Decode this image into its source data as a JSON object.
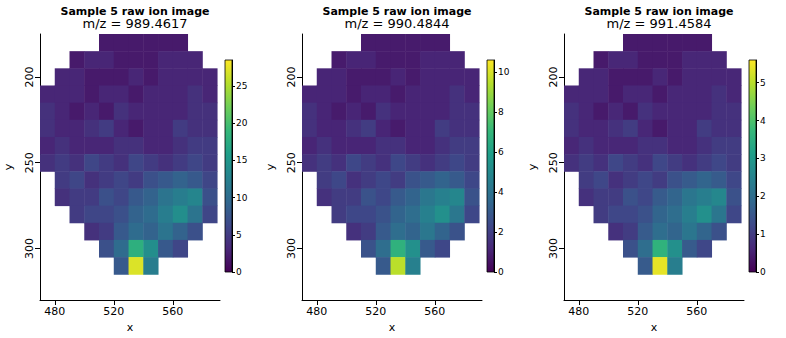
{
  "chart_data": [
    {
      "type": "heatmap",
      "title": "Sample 5 raw ion image",
      "subtitle": "m/z = 989.4617",
      "x_label": "x",
      "y_label": "y",
      "x": [
        475,
        485,
        495,
        505,
        515,
        525,
        535,
        545,
        555,
        565,
        575,
        585
      ],
      "y": [
        180,
        190,
        200,
        210,
        220,
        230,
        240,
        250,
        260,
        270,
        280,
        290,
        300,
        310
      ],
      "cells": [
        [
          null,
          null,
          null,
          null,
          2,
          2,
          2,
          2,
          2,
          2,
          null,
          null
        ],
        [
          null,
          null,
          2,
          3,
          3,
          2,
          2,
          2,
          3,
          3,
          3,
          null
        ],
        [
          null,
          3,
          3,
          2,
          2,
          2,
          3,
          2,
          3,
          3,
          3,
          3
        ],
        [
          3,
          3,
          3,
          2,
          3,
          3,
          2,
          3,
          3,
          3,
          4,
          3
        ],
        [
          4,
          3,
          2,
          3,
          2,
          4,
          3,
          3,
          3,
          3,
          4,
          4
        ],
        [
          4,
          3,
          3,
          4,
          5,
          3,
          2,
          3,
          3,
          5,
          4,
          4
        ],
        [
          3,
          4,
          3,
          3,
          3,
          4,
          4,
          3,
          3,
          4,
          5,
          5
        ],
        [
          4,
          5,
          4,
          6,
          5,
          4,
          6,
          5,
          4,
          5,
          6,
          5
        ],
        [
          null,
          5,
          6,
          4,
          5,
          6,
          5,
          7,
          8,
          9,
          8,
          6
        ],
        [
          null,
          4,
          5,
          5,
          7,
          6,
          8,
          9,
          11,
          12,
          13,
          7
        ],
        [
          null,
          null,
          5,
          6,
          6,
          7,
          9,
          10,
          12,
          14,
          11,
          6
        ],
        [
          null,
          null,
          null,
          4,
          5,
          8,
          10,
          9,
          11,
          9,
          7,
          null
        ],
        [
          null,
          null,
          null,
          null,
          7,
          10,
          18,
          14,
          8,
          6,
          null,
          null
        ],
        [
          null,
          null,
          null,
          null,
          null,
          8,
          27,
          12,
          null,
          null,
          null,
          null
        ]
      ],
      "xlim": [
        470,
        592
      ],
      "ylim": [
        330,
        175
      ],
      "xticks": [
        480,
        520,
        560
      ],
      "yticks": [
        200,
        250,
        300
      ],
      "colorbar_range": [
        0,
        28.5
      ],
      "colorbar_ticks": [
        0,
        5,
        10,
        15,
        20,
        25
      ]
    },
    {
      "type": "heatmap",
      "title": "Sample 5 raw ion image",
      "subtitle": "m/z = 990.4844",
      "x_label": "x",
      "y_label": "y",
      "x": [
        475,
        485,
        495,
        505,
        515,
        525,
        535,
        545,
        555,
        565,
        575,
        585
      ],
      "y": [
        180,
        190,
        200,
        210,
        220,
        230,
        240,
        250,
        260,
        270,
        280,
        290,
        300,
        310
      ],
      "cells": [
        [
          null,
          null,
          null,
          null,
          0.8,
          0.8,
          0.8,
          0.8,
          0.8,
          0.8,
          null,
          null
        ],
        [
          null,
          null,
          0.8,
          1.1,
          1.1,
          0.8,
          0.8,
          0.8,
          1.1,
          1.1,
          1.1,
          null
        ],
        [
          null,
          1.1,
          1.1,
          0.8,
          0.8,
          0.8,
          1.1,
          0.8,
          1.1,
          1.1,
          1.1,
          1.1
        ],
        [
          1.1,
          1.1,
          1.1,
          0.8,
          1.1,
          1.1,
          0.8,
          1.1,
          1.1,
          1.1,
          1.5,
          1.1
        ],
        [
          1.5,
          1.1,
          0.8,
          1.1,
          0.8,
          1.5,
          1.1,
          1.1,
          1.1,
          1.1,
          1.5,
          1.5
        ],
        [
          1.5,
          1.1,
          1.1,
          1.5,
          1.9,
          1.1,
          0.8,
          1.1,
          1.1,
          1.9,
          1.5,
          1.5
        ],
        [
          1.1,
          1.5,
          1.1,
          1.1,
          1.1,
          1.5,
          1.5,
          1.1,
          1.1,
          1.5,
          1.9,
          1.9
        ],
        [
          1.5,
          1.9,
          1.5,
          2.3,
          1.9,
          1.5,
          2.3,
          1.9,
          1.5,
          1.9,
          2.3,
          1.9
        ],
        [
          null,
          1.9,
          2.3,
          1.5,
          1.9,
          2.3,
          1.9,
          2.7,
          3.0,
          3.4,
          3.0,
          2.3
        ],
        [
          null,
          1.5,
          1.9,
          1.9,
          2.7,
          2.3,
          3.0,
          3.4,
          4.2,
          4.6,
          4.9,
          2.7
        ],
        [
          null,
          null,
          1.9,
          2.3,
          2.3,
          2.7,
          3.4,
          3.8,
          4.6,
          5.3,
          4.2,
          2.3
        ],
        [
          null,
          null,
          null,
          1.5,
          1.9,
          3.0,
          3.8,
          3.4,
          4.2,
          3.4,
          2.7,
          null
        ],
        [
          null,
          null,
          null,
          null,
          2.7,
          3.8,
          6.8,
          5.3,
          3.0,
          2.3,
          null,
          null
        ],
        [
          null,
          null,
          null,
          null,
          null,
          3.0,
          9.5,
          4.6,
          null,
          null,
          null,
          null
        ]
      ],
      "xlim": [
        470,
        592
      ],
      "ylim": [
        330,
        175
      ],
      "xticks": [
        480,
        520,
        560
      ],
      "yticks": [
        200,
        250,
        300
      ],
      "colorbar_range": [
        0,
        10.6
      ],
      "colorbar_ticks": [
        0,
        2,
        4,
        6,
        8,
        10
      ]
    },
    {
      "type": "heatmap",
      "title": "Sample 5 raw ion image",
      "subtitle": "m/z = 991.4584",
      "x_label": "x",
      "y_label": "y",
      "x": [
        475,
        485,
        495,
        505,
        515,
        525,
        535,
        545,
        555,
        565,
        575,
        585
      ],
      "y": [
        180,
        190,
        200,
        210,
        220,
        230,
        240,
        250,
        260,
        270,
        280,
        290,
        300,
        310
      ],
      "cells": [
        [
          null,
          null,
          null,
          null,
          0.4,
          0.4,
          0.4,
          0.4,
          0.4,
          0.4,
          null,
          null
        ],
        [
          null,
          null,
          0.4,
          0.6,
          0.6,
          0.4,
          0.4,
          0.4,
          0.6,
          0.6,
          0.6,
          null
        ],
        [
          null,
          0.6,
          0.6,
          0.4,
          0.4,
          0.4,
          0.6,
          0.4,
          0.6,
          0.6,
          0.6,
          0.6
        ],
        [
          0.6,
          0.6,
          0.6,
          0.4,
          0.6,
          0.6,
          0.4,
          0.6,
          0.6,
          0.6,
          0.8,
          0.6
        ],
        [
          0.8,
          0.6,
          0.4,
          0.6,
          0.4,
          0.8,
          0.6,
          0.6,
          0.6,
          0.6,
          0.8,
          0.8
        ],
        [
          0.8,
          0.6,
          0.6,
          0.8,
          1.0,
          0.6,
          0.4,
          0.6,
          0.6,
          1.0,
          0.8,
          0.8
        ],
        [
          0.6,
          0.8,
          0.6,
          0.6,
          0.6,
          0.8,
          0.8,
          0.6,
          0.6,
          0.8,
          1.0,
          1.0
        ],
        [
          0.8,
          1.0,
          0.8,
          1.2,
          1.0,
          0.8,
          1.2,
          1.0,
          0.8,
          1.0,
          1.2,
          1.0
        ],
        [
          null,
          1.0,
          1.2,
          0.8,
          1.0,
          1.2,
          1.0,
          1.4,
          1.6,
          1.8,
          1.6,
          1.2
        ],
        [
          null,
          0.8,
          1.0,
          1.0,
          1.4,
          1.2,
          1.6,
          1.8,
          2.2,
          2.4,
          2.6,
          1.4
        ],
        [
          null,
          null,
          1.0,
          1.2,
          1.2,
          1.4,
          1.8,
          2.0,
          2.4,
          2.8,
          2.2,
          1.2
        ],
        [
          null,
          null,
          null,
          0.8,
          1.0,
          1.6,
          2.0,
          1.8,
          2.2,
          1.8,
          1.4,
          null
        ],
        [
          null,
          null,
          null,
          null,
          1.4,
          2.0,
          3.6,
          2.8,
          1.6,
          1.2,
          null,
          null
        ],
        [
          null,
          null,
          null,
          null,
          null,
          1.6,
          5.4,
          2.4,
          null,
          null,
          null,
          null
        ]
      ],
      "xlim": [
        470,
        592
      ],
      "ylim": [
        330,
        175
      ],
      "xticks": [
        480,
        520,
        560
      ],
      "yticks": [
        200,
        250,
        300
      ],
      "colorbar_range": [
        0,
        5.6
      ],
      "colorbar_ticks": [
        0,
        1,
        2,
        3,
        4,
        5
      ]
    }
  ]
}
